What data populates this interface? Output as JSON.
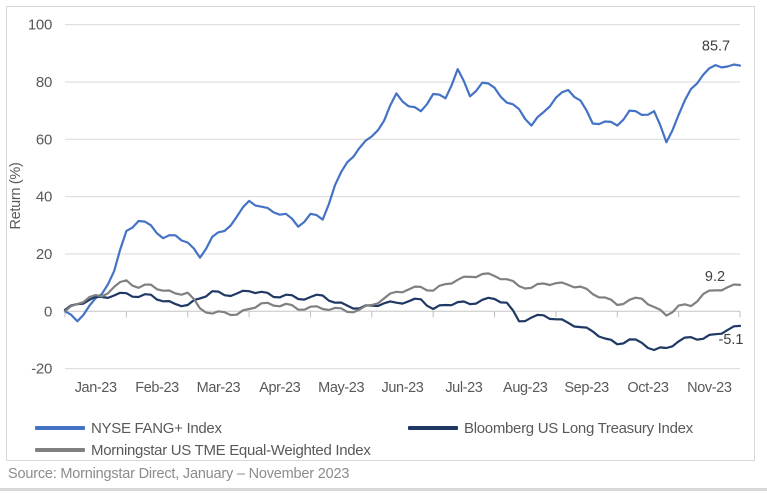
{
  "source": "Source: Morningstar Direct, January – November 2023",
  "colors": {
    "gridline": "#D9D9D9",
    "zero_line": "#C6C6C6",
    "tick_mark": "#BFBFBF",
    "axis_text": "#595959",
    "end_label_text": "#404040",
    "panel_border": "#D9D9D9"
  },
  "chart_data": {
    "type": "line",
    "title": "",
    "ylabel": "Return (%)",
    "xlabel": "",
    "ylim": [
      -20,
      100
    ],
    "y_ticks": [
      100,
      80,
      60,
      40,
      20,
      0,
      -20
    ],
    "x_tick_labels": [
      "Jan-23",
      "Feb-23",
      "Mar-23",
      "Apr-23",
      "May-23",
      "Jun-23",
      "Jul-23",
      "Aug-23",
      "Sep-23",
      "Oct-23",
      "Nov-23"
    ],
    "x_unit": "months since Jan 1 2023",
    "x_range_months": [
      0,
      11
    ],
    "x_step": 0.2,
    "grid": "horizontal",
    "legend_position": "bottom",
    "series": [
      {
        "name": "NYSE FANG+ Index",
        "color": "#4472C4",
        "end_label": "85.7",
        "end_value": 85.7,
        "values": [
          0,
          -3.5,
          2,
          6,
          14,
          28,
          31.5,
          30,
          25.5,
          26.5,
          24,
          18.7,
          26,
          28,
          33,
          38.5,
          36.5,
          34.5,
          34,
          29.5,
          34,
          32,
          44,
          52,
          57,
          61,
          66.5,
          76,
          71.5,
          69.8,
          75.8,
          74.3,
          84.5,
          75,
          79.8,
          78,
          72.8,
          70.5,
          64.8,
          69.5,
          74.5,
          77.2,
          73.5,
          65.5,
          66.2,
          64.8,
          70,
          68.5,
          69.8,
          59,
          68.5,
          77.5,
          82.5,
          85.9,
          85.4,
          85.7
        ]
      },
      {
        "name": "Bloomberg US Long Treasury Index",
        "color": "#1F3864",
        "end_label": "-5.1",
        "end_value": -5.1,
        "values": [
          0.5,
          2.5,
          4,
          5,
          5.5,
          6.3,
          5,
          5.8,
          3.5,
          2.5,
          2.2,
          4.5,
          7,
          5.6,
          6.2,
          7,
          6.8,
          5,
          5.8,
          4.3,
          5,
          5.5,
          3,
          2,
          1,
          2,
          2.8,
          3,
          3.5,
          4.2,
          0.8,
          2.2,
          3.2,
          2.5,
          4,
          4.3,
          3,
          -3.5,
          -2.2,
          -1.4,
          -2.8,
          -4,
          -5.5,
          -7,
          -9.5,
          -11.5,
          -9.8,
          -11,
          -13.5,
          -12.8,
          -10.5,
          -9,
          -9.6,
          -8,
          -6.5,
          -5.1
        ]
      },
      {
        "name": "Morningstar US TME Equal-Weighted Index",
        "color": "#808080",
        "end_label": "9.2",
        "end_value": 9.2,
        "values": [
          0,
          2.5,
          5,
          5.2,
          8.5,
          10.8,
          8.2,
          9.3,
          7.2,
          6.2,
          6.5,
          1,
          -0.8,
          -0.3,
          -1.2,
          0.8,
          2.8,
          2,
          2.6,
          0.6,
          1.6,
          0.8,
          1.2,
          -0.2,
          0.6,
          2.2,
          4.5,
          6.8,
          7.6,
          8.5,
          7.2,
          9.5,
          11,
          12,
          13,
          12.3,
          11.2,
          8.8,
          8.2,
          9.7,
          9.8,
          9.2,
          8.6,
          6,
          4.8,
          2.2,
          4,
          4.4,
          1.5,
          -1.5,
          2,
          1.8,
          6,
          7.3,
          8.4,
          9.2
        ]
      }
    ]
  }
}
